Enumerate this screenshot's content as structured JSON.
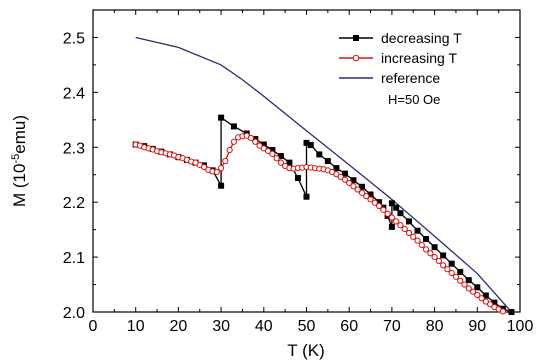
{
  "chart_data": {
    "type": "line",
    "title": "",
    "xlabel": "T (K)",
    "ylabel_main": "M (10",
    "ylabel_sup": "-5",
    "ylabel_end": "emu)",
    "xlim": [
      0,
      100
    ],
    "ylim": [
      2.0,
      2.55
    ],
    "xticks": [
      0,
      10,
      20,
      30,
      40,
      50,
      60,
      70,
      80,
      90,
      100
    ],
    "yticks": [
      "2.0",
      "2.1",
      "2.2",
      "2.3",
      "2.4",
      "2.5"
    ],
    "yticks_values": [
      2.0,
      2.1,
      2.2,
      2.3,
      2.4,
      2.5
    ],
    "grid": false,
    "legend_position": "top-right",
    "annotation": "H=50 Oe",
    "series": [
      {
        "name": "decreasing T",
        "color": "#000000",
        "marker": "filled-square",
        "x": [
          10,
          12,
          14,
          16,
          18,
          20,
          22,
          24,
          26,
          28,
          30,
          30,
          33,
          36,
          38,
          40,
          42,
          44,
          46,
          48,
          50,
          50,
          51,
          53,
          55,
          57,
          59,
          61,
          63,
          65,
          67,
          68,
          69,
          70,
          70,
          71,
          72,
          74,
          76,
          78,
          80,
          82,
          84,
          86,
          88,
          90,
          92,
          94,
          96,
          98
        ],
        "y": [
          2.305,
          2.302,
          2.297,
          2.292,
          2.287,
          2.282,
          2.277,
          2.272,
          2.267,
          2.258,
          2.23,
          2.354,
          2.338,
          2.325,
          2.315,
          2.305,
          2.295,
          2.284,
          2.272,
          2.244,
          2.21,
          2.308,
          2.304,
          2.287,
          2.275,
          2.262,
          2.252,
          2.24,
          2.228,
          2.214,
          2.2,
          2.19,
          2.175,
          2.155,
          2.198,
          2.19,
          2.18,
          2.165,
          2.148,
          2.133,
          2.118,
          2.103,
          2.088,
          2.073,
          2.058,
          2.045,
          2.03,
          2.017,
          2.006,
          2.0
        ]
      },
      {
        "name": "increasing T",
        "color": "#dd1111",
        "marker": "open-circle",
        "x": [
          10,
          11,
          12,
          13,
          14,
          15,
          16,
          17,
          18,
          19,
          20,
          21,
          22,
          23,
          24,
          25,
          26,
          27,
          28,
          29,
          30,
          31,
          32,
          33,
          34,
          35,
          36,
          37,
          38,
          39,
          40,
          41,
          42,
          43,
          44,
          45,
          46,
          47,
          48,
          49,
          50,
          51,
          52,
          53,
          54,
          55,
          56,
          57,
          58,
          59,
          60,
          61,
          62,
          63,
          64,
          65,
          66,
          67,
          68,
          69,
          70,
          71,
          72,
          73,
          74,
          75,
          76,
          77,
          78,
          79,
          80,
          81,
          82,
          83,
          84,
          85,
          86,
          87,
          88,
          89,
          90,
          91,
          92,
          93,
          94,
          95,
          96,
          97,
          98
        ],
        "y": [
          2.305,
          2.303,
          2.3,
          2.298,
          2.296,
          2.293,
          2.291,
          2.289,
          2.287,
          2.285,
          2.282,
          2.28,
          2.277,
          2.274,
          2.272,
          2.268,
          2.264,
          2.259,
          2.256,
          2.255,
          2.262,
          2.275,
          2.295,
          2.31,
          2.318,
          2.32,
          2.321,
          2.317,
          2.31,
          2.303,
          2.298,
          2.293,
          2.288,
          2.28,
          2.272,
          2.266,
          2.262,
          2.261,
          2.262,
          2.263,
          2.264,
          2.263,
          2.262,
          2.261,
          2.26,
          2.258,
          2.255,
          2.251,
          2.246,
          2.241,
          2.235,
          2.229,
          2.223,
          2.217,
          2.211,
          2.205,
          2.199,
          2.193,
          2.186,
          2.179,
          2.172,
          2.165,
          2.158,
          2.151,
          2.144,
          2.137,
          2.13,
          2.122,
          2.114,
          2.107,
          2.1,
          2.093,
          2.085,
          2.078,
          2.071,
          2.064,
          2.057,
          2.05,
          2.043,
          2.037,
          2.031,
          2.025,
          2.019,
          2.014,
          2.009,
          2.005,
          2.001,
          1.998,
          1.996
        ]
      },
      {
        "name": "reference",
        "color": "#2b2a7a",
        "marker": "none",
        "x": [
          10,
          20,
          30,
          35,
          40,
          50,
          60,
          70,
          80,
          90,
          98
        ],
        "y": [
          2.5,
          2.482,
          2.45,
          2.423,
          2.393,
          2.33,
          2.268,
          2.205,
          2.138,
          2.07,
          2.0
        ]
      }
    ]
  }
}
